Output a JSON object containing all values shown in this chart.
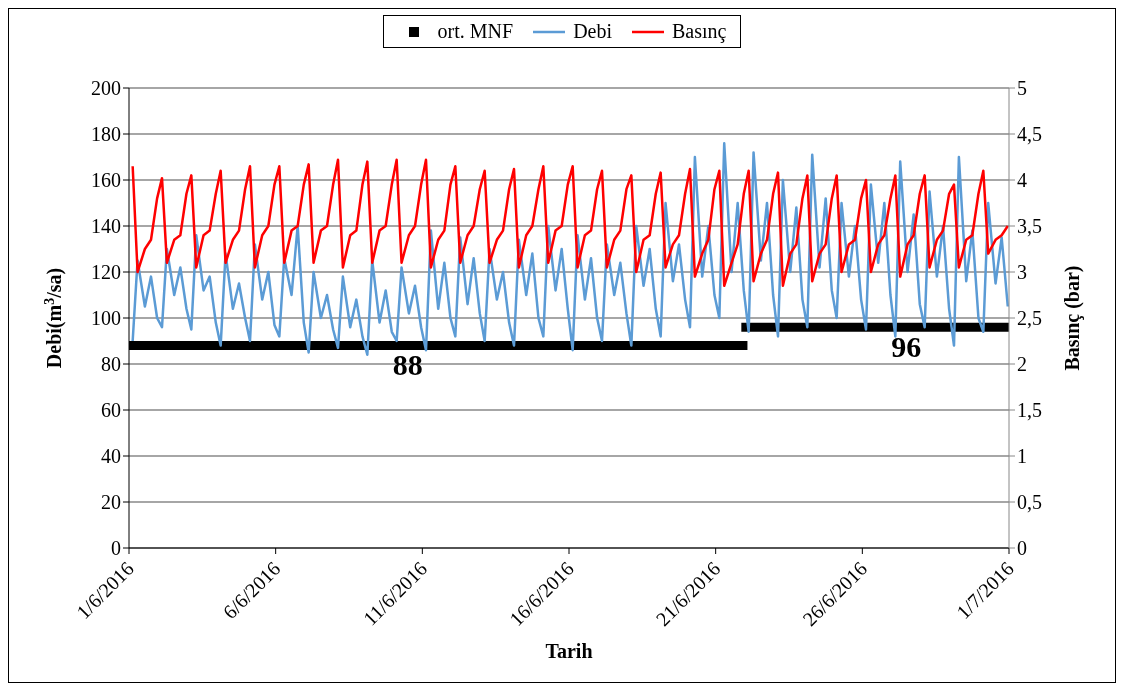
{
  "chart_data": {
    "type": "line",
    "xlabel": "Tarih",
    "ylabel": "Debi(m$^{3}$/sa)",
    "y2label": "Basınç (bar)",
    "legend": "top",
    "grid": "y",
    "xlim": [
      "2016-06-01",
      "2016-07-01"
    ],
    "xticks": [
      {
        "value": "2016-06-01",
        "label": "1/6/2016"
      },
      {
        "value": "2016-06-06",
        "label": "6/6/2016"
      },
      {
        "value": "2016-06-11",
        "label": "11/6/2016"
      },
      {
        "value": "2016-06-16",
        "label": "16/6/2016"
      },
      {
        "value": "2016-06-21",
        "label": "21/6/2016"
      },
      {
        "value": "2016-06-26",
        "label": "26/6/2016"
      },
      {
        "value": "2016-07-01",
        "label": "1/7/2016"
      }
    ],
    "ylim": [
      0,
      200
    ],
    "yticks": [
      0,
      20,
      40,
      60,
      80,
      100,
      120,
      140,
      160,
      180,
      200
    ],
    "y2lim": [
      0,
      5
    ],
    "y2ticks": [
      0,
      {
        "value": 0.5,
        "label": "0,5"
      },
      1,
      {
        "value": 1.5,
        "label": "1,5"
      },
      2,
      {
        "value": 2.5,
        "label": "2,5"
      },
      3,
      {
        "value": 3.5,
        "label": "3,5"
      },
      4,
      {
        "value": 4.5,
        "label": "4,5"
      },
      5
    ],
    "x": [
      "2016-06-01T03:00",
      "2016-06-01T07:00",
      "2016-06-01T13:00",
      "2016-06-01T18:00",
      "2016-06-01T23:00",
      "2016-06-02T03:00",
      "2016-06-02T07:00",
      "2016-06-02T13:00",
      "2016-06-02T18:00",
      "2016-06-02T23:00",
      "2016-06-03T03:00",
      "2016-06-03T07:00",
      "2016-06-03T13:00",
      "2016-06-03T18:00",
      "2016-06-03T23:00",
      "2016-06-04T03:00",
      "2016-06-04T07:00",
      "2016-06-04T13:00",
      "2016-06-04T18:00",
      "2016-06-04T23:00",
      "2016-06-05T03:00",
      "2016-06-05T07:00",
      "2016-06-05T13:00",
      "2016-06-05T18:00",
      "2016-06-05T23:00",
      "2016-06-06T03:00",
      "2016-06-06T07:00",
      "2016-06-06T13:00",
      "2016-06-06T18:00",
      "2016-06-06T23:00",
      "2016-06-07T03:00",
      "2016-06-07T07:00",
      "2016-06-07T13:00",
      "2016-06-07T18:00",
      "2016-06-07T23:00",
      "2016-06-08T03:00",
      "2016-06-08T07:00",
      "2016-06-08T13:00",
      "2016-06-08T18:00",
      "2016-06-08T23:00",
      "2016-06-09T03:00",
      "2016-06-09T07:00",
      "2016-06-09T13:00",
      "2016-06-09T18:00",
      "2016-06-09T23:00",
      "2016-06-10T03:00",
      "2016-06-10T07:00",
      "2016-06-10T13:00",
      "2016-06-10T18:00",
      "2016-06-10T23:00",
      "2016-06-11T03:00",
      "2016-06-11T07:00",
      "2016-06-11T13:00",
      "2016-06-11T18:00",
      "2016-06-11T23:00",
      "2016-06-12T03:00",
      "2016-06-12T07:00",
      "2016-06-12T13:00",
      "2016-06-12T18:00",
      "2016-06-12T23:00",
      "2016-06-13T03:00",
      "2016-06-13T07:00",
      "2016-06-13T13:00",
      "2016-06-13T18:00",
      "2016-06-13T23:00",
      "2016-06-14T03:00",
      "2016-06-14T07:00",
      "2016-06-14T13:00",
      "2016-06-14T18:00",
      "2016-06-14T23:00",
      "2016-06-15T03:00",
      "2016-06-15T07:00",
      "2016-06-15T13:00",
      "2016-06-15T18:00",
      "2016-06-15T23:00",
      "2016-06-16T03:00",
      "2016-06-16T07:00",
      "2016-06-16T13:00",
      "2016-06-16T18:00",
      "2016-06-16T23:00",
      "2016-06-17T03:00",
      "2016-06-17T07:00",
      "2016-06-17T13:00",
      "2016-06-17T18:00",
      "2016-06-17T23:00",
      "2016-06-18T03:00",
      "2016-06-18T07:00",
      "2016-06-18T13:00",
      "2016-06-18T18:00",
      "2016-06-18T23:00",
      "2016-06-19T03:00",
      "2016-06-19T07:00",
      "2016-06-19T13:00",
      "2016-06-19T18:00",
      "2016-06-19T23:00",
      "2016-06-20T03:00",
      "2016-06-20T07:00",
      "2016-06-20T13:00",
      "2016-06-20T18:00",
      "2016-06-20T23:00",
      "2016-06-21T03:00",
      "2016-06-21T07:00",
      "2016-06-21T13:00",
      "2016-06-21T18:00",
      "2016-06-21T23:00",
      "2016-06-22T03:00",
      "2016-06-22T07:00",
      "2016-06-22T13:00",
      "2016-06-22T18:00",
      "2016-06-22T23:00",
      "2016-06-23T03:00",
      "2016-06-23T07:00",
      "2016-06-23T13:00",
      "2016-06-23T18:00",
      "2016-06-23T23:00",
      "2016-06-24T03:00",
      "2016-06-24T07:00",
      "2016-06-24T13:00",
      "2016-06-24T18:00",
      "2016-06-24T23:00",
      "2016-06-25T03:00",
      "2016-06-25T07:00",
      "2016-06-25T13:00",
      "2016-06-25T18:00",
      "2016-06-25T23:00",
      "2016-06-26T03:00",
      "2016-06-26T07:00",
      "2016-06-26T13:00",
      "2016-06-26T18:00",
      "2016-06-26T23:00",
      "2016-06-27T03:00",
      "2016-06-27T07:00",
      "2016-06-27T13:00",
      "2016-06-27T18:00",
      "2016-06-27T23:00",
      "2016-06-28T03:00",
      "2016-06-28T07:00",
      "2016-06-28T13:00",
      "2016-06-28T18:00",
      "2016-06-28T23:00",
      "2016-06-29T03:00",
      "2016-06-29T07:00",
      "2016-06-29T13:00",
      "2016-06-29T18:00",
      "2016-06-29T23:00",
      "2016-06-30T03:00",
      "2016-06-30T07:00",
      "2016-06-30T13:00",
      "2016-06-30T18:00",
      "2016-06-30T23:00"
    ],
    "annotations": [
      {
        "text": "88",
        "x": "2016-06-10T12:00",
        "y": 88
      },
      {
        "text": "96",
        "x": "2016-06-27T12:00",
        "y": 96
      }
    ],
    "series": [
      {
        "name": "ort. MNF",
        "color": "#000000",
        "x": [
          "2016-06-01",
          "2016-06-22T02:00"
        ],
        "values": [
          88,
          88
        ]
      },
      {
        "color": "#000000",
        "x": [
          "2016-06-21T21:00",
          "2016-07-01"
        ],
        "values": [
          96,
          96
        ]
      },
      {
        "name": "Debi",
        "color": "#5b9bd5",
        "values": [
          90,
          125,
          105,
          118,
          100,
          96,
          130,
          110,
          122,
          104,
          95,
          136,
          112,
          118,
          98,
          88,
          128,
          104,
          115,
          100,
          90,
          132,
          108,
          120,
          97,
          92,
          126,
          110,
          140,
          98,
          85,
          120,
          100,
          110,
          95,
          87,
          118,
          96,
          108,
          92,
          84,
          125,
          98,
          112,
          94,
          90,
          122,
          102,
          114,
          96,
          86,
          138,
          104,
          124,
          100,
          92,
          135,
          106,
          126,
          102,
          90,
          130,
          108,
          120,
          98,
          88,
          134,
          110,
          128,
          100,
          92,
          140,
          112,
          130,
          104,
          86,
          136,
          108,
          126,
          100,
          90,
          132,
          110,
          124,
          102,
          88,
          140,
          114,
          130,
          104,
          92,
          150,
          116,
          132,
          108,
          96,
          170,
          118,
          140,
          110,
          100,
          176,
          120,
          150,
          112,
          94,
          172,
          125,
          150,
          110,
          92,
          160,
          120,
          148,
          108,
          96,
          171,
          122,
          152,
          112,
          100,
          150,
          118,
          140,
          108,
          95,
          158,
          124,
          150,
          110,
          92,
          168,
          120,
          145,
          106,
          96,
          155,
          118,
          140,
          104,
          88,
          170,
          116,
          138,
          100,
          94,
          150,
          115,
          135,
          105
        ]
      },
      {
        "name": "Basınç",
        "color": "#ff0000",
        "axis": "y2",
        "values": [
          4.15,
          3.0,
          3.25,
          3.35,
          3.8,
          4.02,
          3.1,
          3.35,
          3.4,
          3.85,
          4.05,
          3.05,
          3.4,
          3.45,
          3.85,
          4.1,
          3.1,
          3.35,
          3.45,
          3.9,
          4.15,
          3.05,
          3.4,
          3.5,
          3.95,
          4.15,
          3.1,
          3.45,
          3.5,
          3.95,
          4.17,
          3.1,
          3.45,
          3.5,
          3.95,
          4.22,
          3.05,
          3.4,
          3.45,
          3.95,
          4.2,
          3.1,
          3.45,
          3.5,
          3.95,
          4.22,
          3.1,
          3.4,
          3.5,
          3.95,
          4.22,
          3.05,
          3.35,
          3.45,
          3.95,
          4.15,
          3.1,
          3.4,
          3.5,
          3.9,
          4.1,
          3.1,
          3.35,
          3.45,
          3.9,
          4.12,
          3.05,
          3.4,
          3.5,
          3.9,
          4.15,
          3.1,
          3.45,
          3.5,
          3.95,
          4.15,
          3.05,
          3.4,
          3.45,
          3.9,
          4.1,
          3.05,
          3.35,
          3.45,
          3.9,
          4.05,
          3.0,
          3.35,
          3.4,
          3.85,
          4.08,
          3.05,
          3.3,
          3.4,
          3.85,
          4.12,
          2.95,
          3.2,
          3.35,
          3.9,
          4.1,
          2.85,
          3.1,
          3.3,
          3.85,
          4.1,
          2.9,
          3.2,
          3.35,
          3.85,
          4.08,
          2.85,
          3.2,
          3.3,
          3.8,
          4.05,
          2.9,
          3.2,
          3.3,
          3.8,
          4.05,
          3.0,
          3.3,
          3.35,
          3.8,
          4.0,
          3.0,
          3.3,
          3.4,
          3.8,
          4.05,
          2.95,
          3.3,
          3.4,
          3.85,
          4.05,
          3.05,
          3.35,
          3.45,
          3.85,
          3.95,
          3.05,
          3.35,
          3.4,
          3.85,
          4.1,
          3.2,
          3.35,
          3.4,
          3.5
        ]
      }
    ]
  }
}
